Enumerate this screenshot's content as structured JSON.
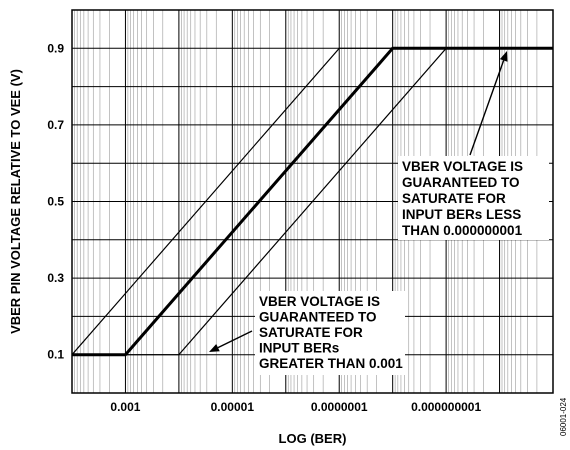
{
  "chart_data": {
    "type": "line",
    "xlabel": "LOG (BER)",
    "ylabel": "VBER PIN VOLTAGE RELATIVE TO VEE (V)",
    "x_scale": "log",
    "x_reversed": true,
    "xlim": [
      0.01,
      1e-11
    ],
    "ylim": [
      0.0,
      1.0
    ],
    "x_tick_values": [
      0.001,
      1e-05,
      1e-07,
      1e-09
    ],
    "x_tick_labels": [
      "0.001",
      "0.00001",
      "0.0000001",
      "0.000000001"
    ],
    "y_tick_values": [
      0.1,
      0.3,
      0.5,
      0.7,
      0.9
    ],
    "y_tick_labels": [
      "0.1",
      "0.3",
      "0.5",
      "0.7",
      "0.9"
    ],
    "grid": true,
    "series": [
      {
        "x": [
          0.01,
          0.001,
          1e-08,
          1e-11
        ],
        "y": [
          0.1,
          0.1,
          0.9,
          0.9
        ],
        "emphasis": "bold"
      },
      {
        "x": [
          0.01,
          1e-07,
          1e-11
        ],
        "y": [
          0.1,
          0.9,
          0.9
        ],
        "emphasis": "thin"
      },
      {
        "x": [
          0.01,
          0.0001,
          1e-09,
          1e-11
        ],
        "y": [
          0.1,
          0.1,
          0.9,
          0.9
        ],
        "emphasis": "thin"
      }
    ],
    "annotations": [
      {
        "lines": [
          "VBER VOLTAGE IS",
          "GUARANTEED TO",
          "SATURATE FOR",
          "INPUT BERs LESS",
          "THAN 0.000000001"
        ]
      },
      {
        "lines": [
          "VBER VOLTAGE IS",
          "GUARANTEED TO",
          "SATURATE FOR",
          "INPUT BERs",
          "GREATER THAN 0.001"
        ]
      }
    ],
    "figure_id": "06001-024"
  }
}
